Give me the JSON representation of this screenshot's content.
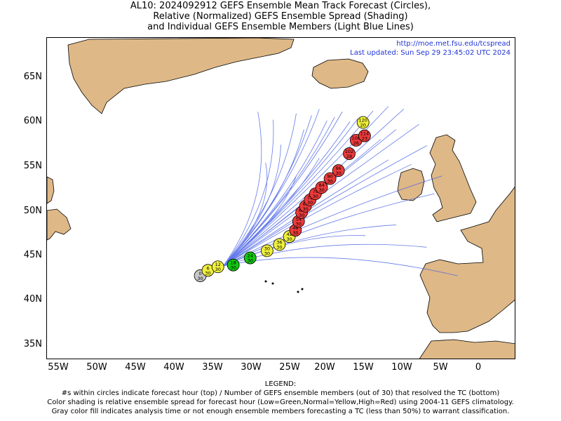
{
  "title_lines": [
    "AL10: 2024092912 GEFS Ensemble Mean Track Forecast (Circles),",
    "Relative (Normalized) GEFS Ensemble Spread (Shading)",
    "and Individual GEFS Ensemble Members (Light Blue Lines)"
  ],
  "info": {
    "url": "http://moe.met.fsu.edu/tcspread",
    "updated": "Last updated: Sun Sep 29 23:45:02 UTC 2024"
  },
  "axes": {
    "lat_labels": [
      "65N",
      "60N",
      "55N",
      "50N",
      "45N",
      "40N",
      "35N"
    ],
    "lon_labels": [
      "55W",
      "50W",
      "45W",
      "40W",
      "35W",
      "30W",
      "25W",
      "20W",
      "15W",
      "10W",
      "5W",
      "0"
    ]
  },
  "legend": {
    "heading": "LEGEND:",
    "line1": "#s within circles indicate forecast hour (top) / Number of GEFS ensemble members (out of 30) that resolved the TC (bottom)",
    "line2": "Color shading is relative ensemble spread for forecast hour (Low=Green,Normal=Yellow,High=Red) using 2004-11 GEFS climatology.",
    "line3": "Gray color fill indicates analysis time or not enough ensemble members forecasting a TC (less than 50%) to warrant classification."
  },
  "colors": {
    "land": "#deb887",
    "track": "#4a63e6",
    "gray": "#c8c8c8",
    "green": "#12c812",
    "yellow": "#f0f03c",
    "red": "#ec3a3a"
  },
  "track_points": [
    {
      "hour": "0",
      "members": "30",
      "lon": -36.5,
      "lat": 42.8,
      "color": "gray"
    },
    {
      "hour": "6",
      "members": "30",
      "lon": -35.5,
      "lat": 43.4,
      "color": "yellow"
    },
    {
      "hour": "12",
      "members": "30",
      "lon": -34.2,
      "lat": 43.8,
      "color": "yellow"
    },
    {
      "hour": "18",
      "members": "30",
      "lon": -32.2,
      "lat": 44.0,
      "color": "green"
    },
    {
      "hour": "24",
      "members": "30",
      "lon": -30.0,
      "lat": 44.8,
      "color": "green"
    },
    {
      "hour": "30",
      "members": "30",
      "lon": -27.8,
      "lat": 45.6,
      "color": "yellow"
    },
    {
      "hour": "36",
      "members": "30",
      "lon": -26.2,
      "lat": 46.3,
      "color": "yellow"
    },
    {
      "hour": "42",
      "members": "30",
      "lon": -24.9,
      "lat": 47.2,
      "color": "yellow"
    },
    {
      "hour": "48",
      "members": "30",
      "lon": -24.1,
      "lat": 47.9,
      "color": "red"
    },
    {
      "hour": "54",
      "members": "30",
      "lon": -23.7,
      "lat": 48.9,
      "color": "red"
    },
    {
      "hour": "60",
      "members": "30",
      "lon": -23.3,
      "lat": 49.9,
      "color": "red"
    },
    {
      "hour": "66",
      "members": "30",
      "lon": -22.8,
      "lat": 50.6,
      "color": "red"
    },
    {
      "hour": "72",
      "members": "30",
      "lon": -22.2,
      "lat": 51.3,
      "color": "red"
    },
    {
      "hour": "78",
      "members": "30",
      "lon": -21.5,
      "lat": 52.0,
      "color": "red"
    },
    {
      "hour": "84",
      "members": "30",
      "lon": -20.7,
      "lat": 52.7,
      "color": "red"
    },
    {
      "hour": "90",
      "members": "30",
      "lon": -19.6,
      "lat": 53.7,
      "color": "red"
    },
    {
      "hour": "96",
      "members": "30",
      "lon": -18.5,
      "lat": 54.6,
      "color": "red"
    },
    {
      "hour": "102",
      "members": "28",
      "lon": -17.1,
      "lat": 56.5,
      "color": "red"
    },
    {
      "hour": "108",
      "members": "26",
      "lon": -16.2,
      "lat": 58.0,
      "color": "red"
    },
    {
      "hour": "114",
      "members": "23",
      "lon": -15.1,
      "lat": 58.5,
      "color": "red"
    },
    {
      "hour": "120",
      "members": "20",
      "lon": -15.3,
      "lat": 60.0,
      "color": "yellow"
    }
  ]
}
